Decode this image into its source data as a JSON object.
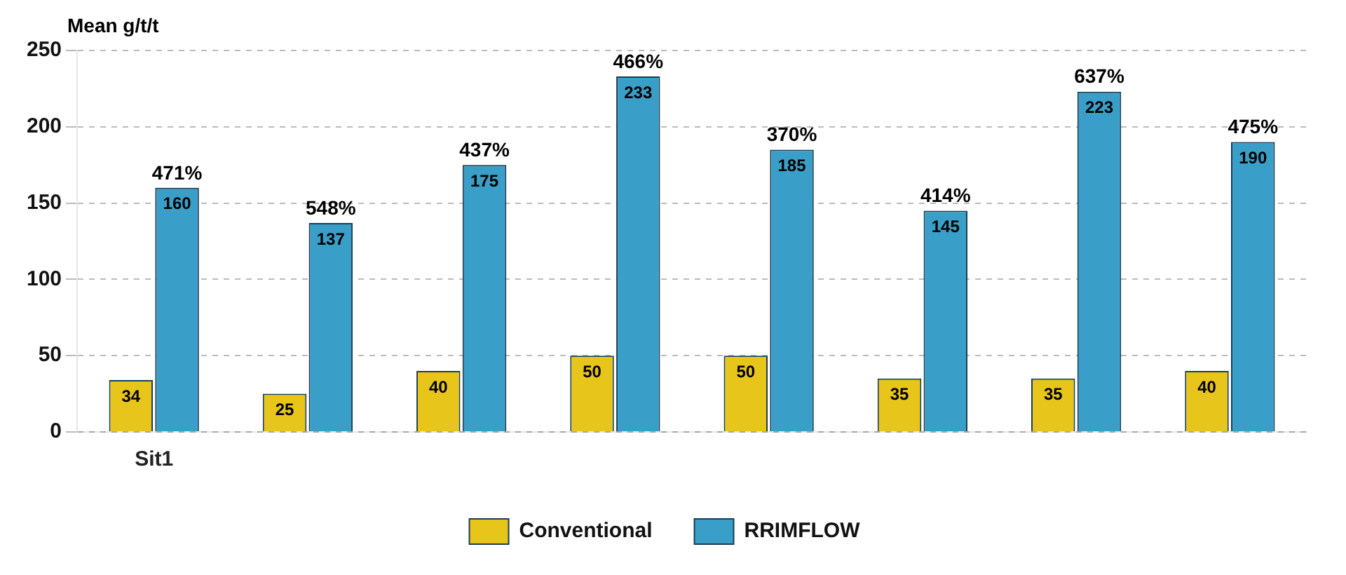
{
  "chart_data": {
    "type": "bar",
    "ylabel": "Mean g/t/t",
    "categories": [
      "Sit1",
      null,
      null,
      null,
      null,
      null,
      null,
      null
    ],
    "series": [
      {
        "name": "Conventional",
        "color": "#e8c51a",
        "values": [
          34,
          25,
          40,
          50,
          50,
          35,
          35,
          40
        ]
      },
      {
        "name": "RRIMFLOW",
        "color": "#3a9fc8",
        "values": [
          160,
          137,
          175,
          233,
          185,
          145,
          223,
          190
        ]
      }
    ],
    "ylim": [
      0,
      250
    ],
    "yticks": [
      0,
      50,
      100,
      150,
      200,
      250
    ],
    "grid": "y",
    "legend": "bottom",
    "data_labels": true,
    "annotations": [
      "471%",
      "548%",
      "437%",
      "466%",
      "370%",
      "414%",
      "637%",
      "475%"
    ]
  }
}
